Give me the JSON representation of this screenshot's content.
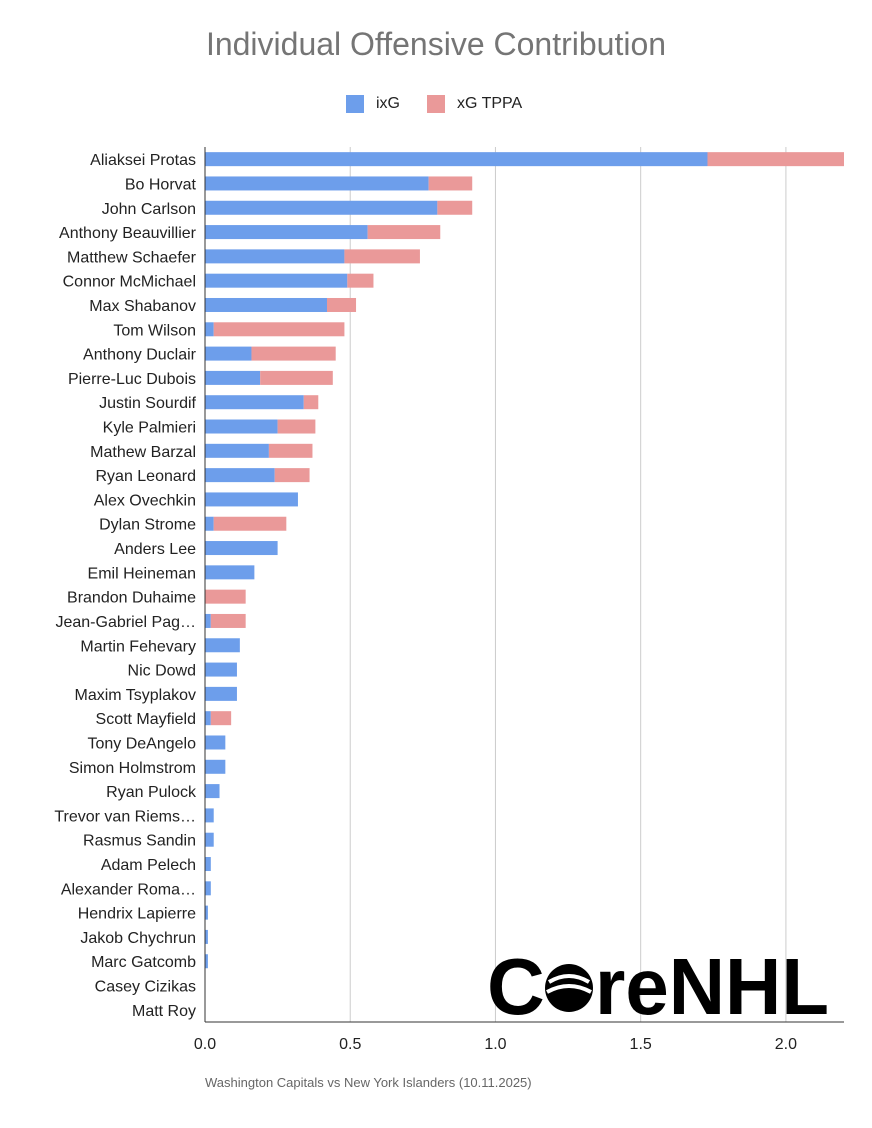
{
  "chart_data": {
    "type": "bar",
    "orientation": "horizontal",
    "stacked": true,
    "title": "Individual Offensive Contribution",
    "xlabel": "",
    "ylabel": "",
    "xlim": [
      0,
      2.2
    ],
    "x_ticks": [
      "0.0",
      "0.5",
      "1.0",
      "1.5",
      "2.0"
    ],
    "x_tick_values": [
      0,
      0.5,
      1.0,
      1.5,
      2.0
    ],
    "grid": true,
    "legend_position": "top-center",
    "categories": [
      "Aliaksei Protas",
      "Bo Horvat",
      "John Carlson",
      "Anthony Beauvillier",
      "Matthew Schaefer",
      "Connor McMichael",
      "Max Shabanov",
      "Tom Wilson",
      "Anthony Duclair",
      "Pierre-Luc Dubois",
      "Justin Sourdif",
      "Kyle Palmieri",
      "Mathew Barzal",
      "Ryan Leonard",
      "Alex Ovechkin",
      "Dylan Strome",
      "Anders Lee",
      "Emil Heineman",
      "Brandon Duhaime",
      "Jean-Gabriel Pag…",
      "Martin Fehevary",
      "Nic Dowd",
      "Maxim Tsyplakov",
      "Scott Mayfield",
      "Tony DeAngelo",
      "Simon Holmstrom",
      "Ryan Pulock",
      "Trevor van Riems…",
      "Rasmus Sandin",
      "Adam Pelech",
      "Alexander Roma…",
      "Hendrix Lapierre",
      "Jakob Chychrun",
      "Marc Gatcomb",
      "Casey Cizikas",
      "Matt Roy"
    ],
    "series": [
      {
        "name": "ixG",
        "color": "#6d9eeb",
        "values": [
          1.73,
          0.77,
          0.8,
          0.56,
          0.48,
          0.49,
          0.42,
          0.03,
          0.16,
          0.19,
          0.34,
          0.25,
          0.22,
          0.24,
          0.32,
          0.03,
          0.25,
          0.17,
          0.0,
          0.02,
          0.12,
          0.11,
          0.11,
          0.02,
          0.07,
          0.07,
          0.05,
          0.03,
          0.03,
          0.02,
          0.02,
          0.01,
          0.01,
          0.01,
          0.0,
          0.0
        ]
      },
      {
        "name": "xG TPPA",
        "color": "#ea9999",
        "values": [
          0.47,
          0.15,
          0.12,
          0.25,
          0.26,
          0.09,
          0.1,
          0.45,
          0.29,
          0.25,
          0.05,
          0.13,
          0.15,
          0.12,
          0.0,
          0.25,
          0.0,
          0.0,
          0.14,
          0.12,
          0.0,
          0.0,
          0.0,
          0.07,
          0.0,
          0.0,
          0.0,
          0.0,
          0.0,
          0.0,
          0.0,
          0.0,
          0.0,
          0.0,
          0.0,
          0.0
        ]
      }
    ]
  },
  "legend": {
    "items": [
      "ixG",
      "xG TPPA"
    ]
  },
  "footnote": "Washington Capitals vs New York Islanders (10.11.2025)",
  "logo": {
    "text": "CoreNHL",
    "prefix": "C",
    "suffix": "reNHL",
    "color": "#000000"
  }
}
